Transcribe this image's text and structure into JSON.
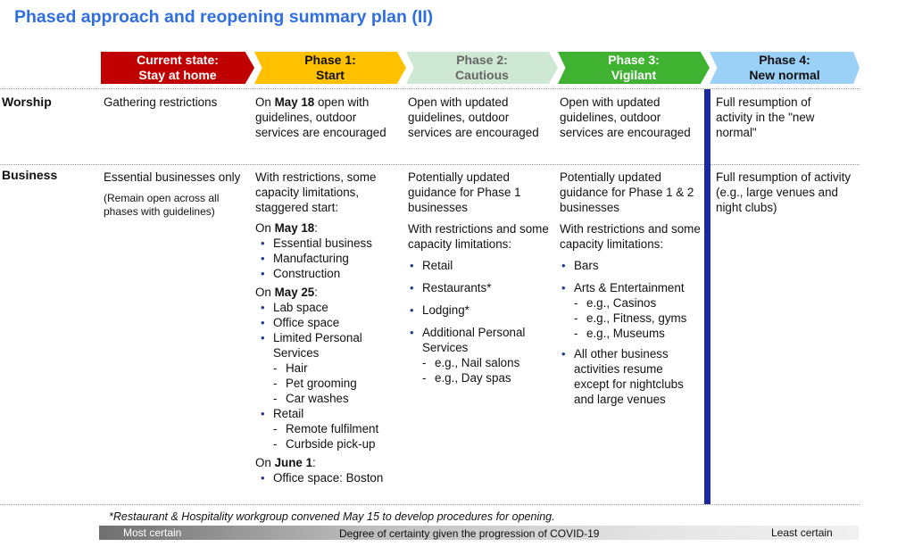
{
  "title": "Phased approach and reopening summary plan (II)",
  "phases": [
    {
      "line1": "Current state:",
      "line2": "Stay at home",
      "color": "#c00000"
    },
    {
      "line1": "Phase 1:",
      "line2": "Start",
      "color": "#ffc000"
    },
    {
      "line1": "Phase 2:",
      "line2": "Cautious",
      "color": "#cfe8d3"
    },
    {
      "line1": "Phase 3:",
      "line2": "Vigilant",
      "color": "#3fb232"
    },
    {
      "line1": "Phase 4:",
      "line2": "New normal",
      "color": "#9bd0f7"
    }
  ],
  "worship": {
    "label": "Worship",
    "current": "Gathering restrictions",
    "p1_pre": "On ",
    "p1_bold": "May 18",
    "p1_post": " open with guidelines, outdoor services are encouraged",
    "p2": "Open with updated guidelines, outdoor services are encouraged",
    "p3": "Open with updated guidelines, outdoor services are encouraged",
    "p4": "Full resumption of activity in the \"new normal\""
  },
  "business": {
    "label": "Business",
    "current": {
      "text": "Essential businesses only",
      "note": "(Remain open across all phases with guidelines)"
    },
    "p1": {
      "intro": "With restrictions, some capacity limitations, staggered start:",
      "groups": [
        {
          "pre": "On ",
          "date": "May 18",
          "post": ":",
          "items": [
            {
              "text": "Essential business",
              "sub": []
            },
            {
              "text": "Manufacturing",
              "sub": []
            },
            {
              "text": "Construction",
              "sub": []
            }
          ]
        },
        {
          "pre": "On ",
          "date": "May 25",
          "post": ":",
          "items": [
            {
              "text": "Lab space",
              "sub": []
            },
            {
              "text": "Office space",
              "sub": []
            },
            {
              "text": "Limited Personal Services",
              "sub": [
                "Hair",
                "Pet grooming",
                "Car washes"
              ]
            },
            {
              "text": "Retail",
              "sub": [
                "Remote fulfilment",
                "Curbside pick-up"
              ]
            }
          ]
        },
        {
          "pre": "On ",
          "date": "June 1",
          "post": ":",
          "items": [
            {
              "text": "Office space: Boston",
              "sub": []
            }
          ]
        }
      ]
    },
    "p2": {
      "intro": "Potentially updated guidance for Phase 1 businesses",
      "intro2": "With restrictions and some capacity limitations:",
      "items": [
        {
          "text": "Retail",
          "sub": []
        },
        {
          "text": "Restaurants*",
          "sub": []
        },
        {
          "text": "Lodging*",
          "sub": []
        },
        {
          "text": "Additional Personal Services",
          "sub": [
            "e.g., Nail salons",
            "e.g., Day spas"
          ]
        }
      ]
    },
    "p3": {
      "intro": "Potentially updated guidance for Phase 1 & 2 businesses",
      "intro2": "With restrictions and some capacity limitations:",
      "items": [
        {
          "text": "Bars",
          "sub": []
        },
        {
          "text": "Arts & Entertainment",
          "sub": [
            "e.g., Casinos",
            "e.g., Fitness, gyms",
            "e.g., Museums"
          ]
        },
        {
          "text": "All other business activities resume except for nightclubs and large venues",
          "sub": []
        }
      ]
    },
    "p4": "Full resumption of activity (e.g., large venues and night clubs)"
  },
  "footnote": "*Restaurant & Hospitality workgroup convened May 15 to develop procedures for opening.",
  "certainty": {
    "left": "Most certain",
    "middle": "Degree of certainty given the progression of COVID-19",
    "right": "Least certain"
  }
}
